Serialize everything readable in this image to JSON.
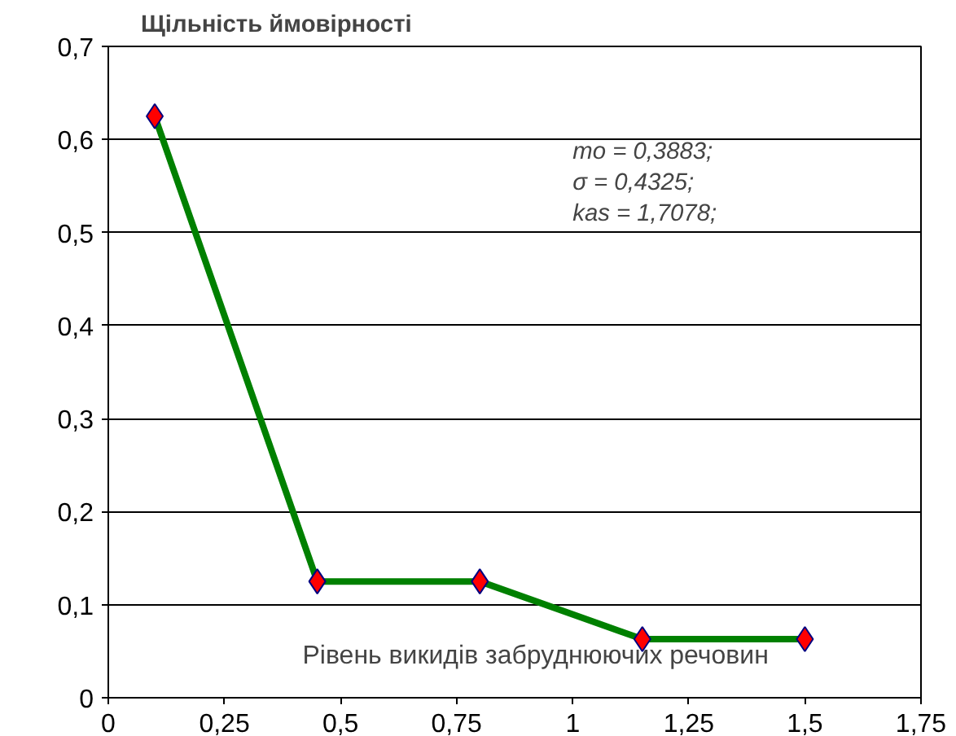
{
  "chart_data": {
    "type": "line",
    "title": "Щільність ймовірності",
    "xlabel": "Рівень викидів забруднюючих речовин",
    "annotations": [
      "mo = 0,3883;\nσ = 0,4325;\nkas = 1,7078;"
    ],
    "x": [
      0.1,
      0.45,
      0.8,
      1.15,
      1.5
    ],
    "series": [
      {
        "color": "#008000",
        "colors": [
          "#ff0000",
          "#ff0000",
          "#ff0000",
          "#ff0000",
          "#ff0000"
        ],
        "values": [
          0.625,
          0.125,
          0.125,
          0.063,
          0.063
        ]
      }
    ],
    "xlim": [
      0,
      1.75
    ],
    "ylim": [
      0,
      0.7
    ],
    "xticks": [
      0,
      {
        "value": 0.25,
        "label": "0,25"
      },
      {
        "value": 0.5,
        "label": "0,5"
      },
      {
        "value": 0.75,
        "label": "0,75"
      },
      1,
      {
        "value": 1.25,
        "label": "1,25"
      },
      {
        "value": 1.5,
        "label": "1,5"
      },
      {
        "value": 1.75,
        "label": "1,75"
      }
    ],
    "yticks": [
      0,
      {
        "value": 0.1,
        "label": "0,1"
      },
      {
        "value": 0.2,
        "label": "0,2"
      },
      {
        "value": 0.3,
        "label": "0,3"
      },
      {
        "value": 0.4,
        "label": "0,4"
      },
      {
        "value": 0.5,
        "label": "0,5"
      },
      {
        "value": 0.6,
        "label": "0,6"
      },
      {
        "value": 0.7,
        "label": "0,7"
      }
    ],
    "grid": "y",
    "marker": "diamond",
    "line_style": "solid"
  }
}
